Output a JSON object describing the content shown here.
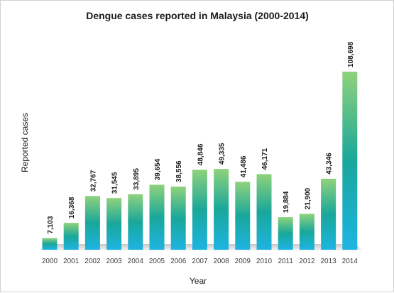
{
  "chart_data": {
    "type": "bar",
    "title": "Dengue cases reported in Malaysia (2000-2014)",
    "xlabel": "Year",
    "ylabel": "Reported cases",
    "categories": [
      "2000",
      "2001",
      "2002",
      "2003",
      "2004",
      "2005",
      "2006",
      "2007",
      "2008",
      "2009",
      "2010",
      "2011",
      "2012",
      "2013",
      "2014"
    ],
    "values": [
      7103,
      16368,
      32767,
      31545,
      33895,
      39654,
      38556,
      48846,
      49335,
      41486,
      46171,
      19884,
      21900,
      43346,
      108698
    ],
    "data_labels": [
      "7,103",
      "16,368",
      "32,767",
      "31,545",
      "33,895",
      "39,654",
      "38,556",
      "48,846",
      "49,335",
      "41,486",
      "46,171",
      "19,884",
      "21,900",
      "43,346",
      "108,698"
    ],
    "ylim": [
      0,
      108698
    ],
    "grid": false,
    "legend": "none",
    "colors": {
      "bar_top": "#8fd27c",
      "bar_mid": "#19a79a",
      "bar_bottom": "#1eb4e2"
    }
  }
}
